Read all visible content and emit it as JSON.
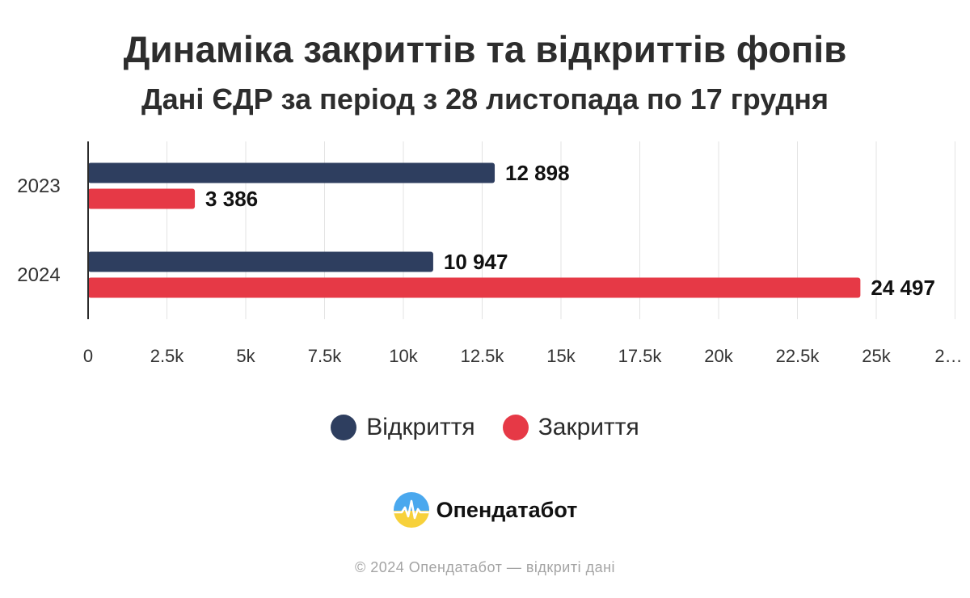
{
  "header": {
    "title": "Динаміка закриттів та відкриттів фопів",
    "subtitle": "Дані ЄДР за період з 28 листопада по 17 грудня"
  },
  "chart_data": {
    "type": "bar",
    "orientation": "horizontal",
    "categories": [
      "2023",
      "2024"
    ],
    "series": [
      {
        "name": "Відкриття",
        "color": "#2e3e5f",
        "values": [
          12898,
          10947
        ],
        "labels": [
          "12 898",
          "10 947"
        ]
      },
      {
        "name": "Закриття",
        "color": "#e63946",
        "values": [
          3386,
          24497
        ],
        "labels": [
          "3 386",
          "24 497"
        ]
      }
    ],
    "x_ticks": [
      "0",
      "2.5k",
      "5k",
      "7.5k",
      "10k",
      "12.5k",
      "15k",
      "17.5k",
      "20k",
      "22.5k",
      "25k",
      "2…"
    ],
    "xlim": [
      0,
      27500
    ],
    "tick_step": 2500,
    "grid": true,
    "legend_position": "bottom"
  },
  "legend": {
    "items": [
      {
        "label": "Відкриття",
        "color": "#2e3e5f"
      },
      {
        "label": "Закриття",
        "color": "#e63946"
      }
    ]
  },
  "brand": {
    "name": "Опендатабот",
    "logo_icon": "opendatabot-logo-icon"
  },
  "footer": {
    "text": "© 2024 Опендатабот — відкриті дані"
  }
}
